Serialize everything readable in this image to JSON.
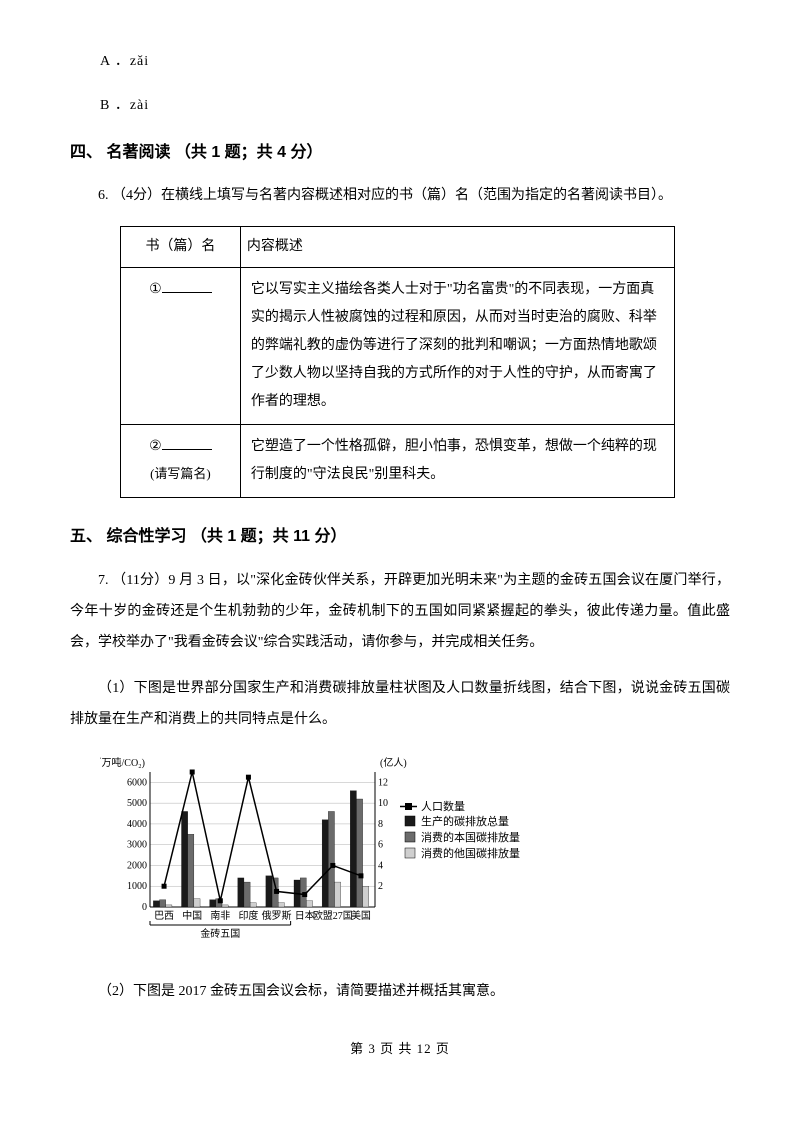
{
  "options": {
    "a": "A ．zǎi",
    "b": "B ．zài"
  },
  "section4": {
    "heading": "四、 名著阅读 （共 1 题；共 4 分）",
    "q6_intro": "6.  （4分）在横线上填写与名著内容概述相对应的书（篇）名（范围为指定的名著阅读书目）。",
    "table": {
      "header_name": "书（篇）名",
      "header_desc": "内容概述",
      "row1": {
        "num": "①",
        "desc": "它以写实主义描绘各类人士对于\"功名富贵\"的不同表现，一方面真实的揭示人性被腐蚀的过程和原因，从而对当时吏治的腐败、科举的弊端礼教的虚伪等进行了深刻的批判和嘲讽；一方面热情地歌颂了少数人物以坚持自我的方式所作的对于人性的守护，从而寄寓了作者的理想。"
      },
      "row2": {
        "num": "②",
        "note": "(请写篇名)",
        "desc": "它塑造了一个性格孤僻，胆小怕事，恐惧变革，想做一个纯粹的现行制度的\"守法良民\"别里科夫。"
      }
    }
  },
  "section5": {
    "heading": "五、 综合性学习 （共 1 题；共 11 分）",
    "q7_intro": "7.  （11分）9 月 3 日，以\"深化金砖伙伴关系，开辟更加光明未来\"为主题的金砖五国会议在厦门举行，今年十岁的金砖还是个生机勃勃的少年，金砖机制下的五国如同紧紧握起的拳头，彼此传递力量。值此盛会，学校举办了\"我看金砖会议\"综合实践活动，请你参与，并完成相关任务。",
    "sub1": "（1）下图是世界部分国家生产和消费碳排放量柱状图及人口数量折线图，结合下图，说说金砖五国碳排放量在生产和消费上的共同特点是什么。",
    "sub2": "（2）下图是 2017 金砖五国会议会标，请简要描述并概括其寓意。"
  },
  "chart": {
    "y_left_label": "(百万吨/CO₂)",
    "y_right_label": "(亿人)",
    "y_left_ticks": [
      0,
      1000,
      2000,
      3000,
      4000,
      5000,
      6000
    ],
    "y_right_ticks": [
      2,
      4,
      6,
      8,
      10,
      12
    ],
    "x_categories": [
      "巴西",
      "中国",
      "南非",
      "印度",
      "俄罗斯",
      "日本",
      "欧盟27国",
      "美国"
    ],
    "group_label": "金砖五国",
    "legend": {
      "population": "人口数量",
      "prod": "生产的碳排放总量",
      "cons_domestic": "消费的本国碳排放量",
      "cons_foreign": "消费的他国碳排放量"
    },
    "bar_data": {
      "prod": [
        300,
        4600,
        350,
        1400,
        1500,
        1300,
        4200,
        5600
      ],
      "cons_domestic": [
        350,
        3500,
        400,
        1200,
        1400,
        1400,
        4600,
        5200
      ],
      "cons_foreign": [
        100,
        400,
        100,
        200,
        200,
        300,
        1200,
        1000
      ]
    },
    "population_line": [
      2,
      13,
      0.6,
      12.5,
      1.5,
      1.2,
      4,
      3
    ],
    "colors": {
      "prod": "#1a1a1a",
      "cons_domestic": "#6b6b6b",
      "cons_foreign": "#cfcfcf",
      "line": "#000000",
      "axis": "#000000",
      "grid": "#b0b0b0",
      "background": "#ffffff"
    },
    "title_fontsize": 12,
    "label_fontsize": 11,
    "tick_fontsize": 10
  },
  "footer": "第 3 页 共 12 页"
}
